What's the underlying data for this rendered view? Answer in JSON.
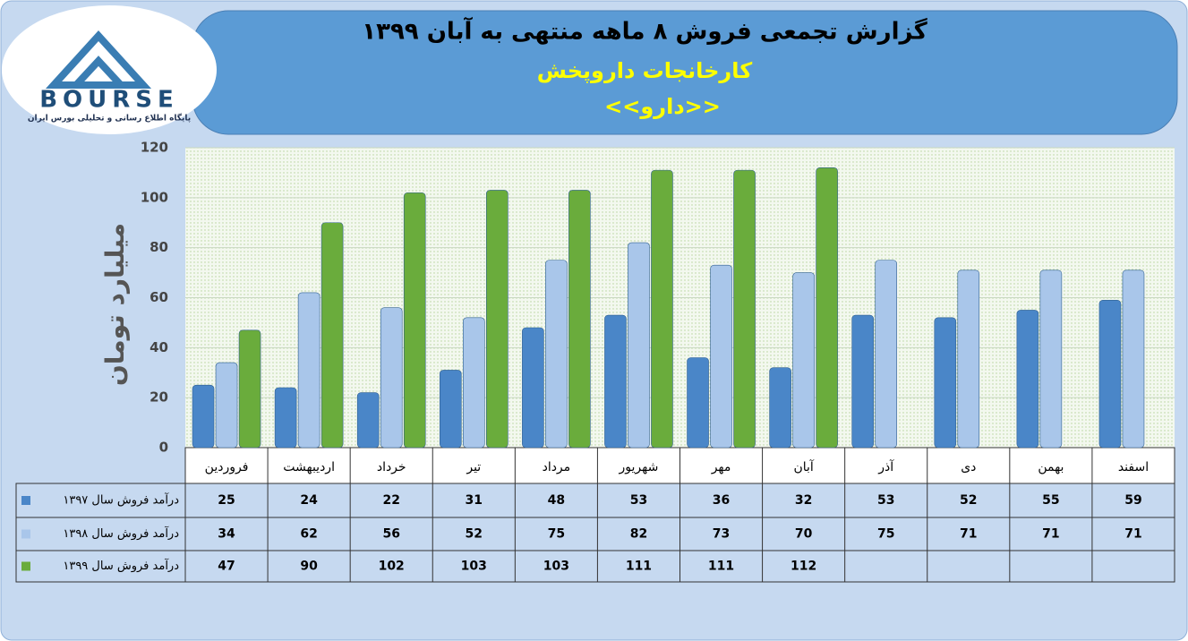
{
  "logo": {
    "brand": "BOURSE",
    "tagline": "پایگاه اطلاع رسانی و تحلیلی بورس ایران"
  },
  "chart_data": {
    "type": "bar",
    "title": "گزارش تجمعی فروش ۸ ماهه منتهی به آبان ۱۳۹۹",
    "subtitle": "کارخانجات داروپخش",
    "annotation": "<<دارو>>",
    "ylabel": "میلیارد تومان",
    "categories": [
      "فروردین",
      "اردیبهشت",
      "خرداد",
      "تیر",
      "مرداد",
      "شهریور",
      "مهر",
      "آبان",
      "آذر",
      "دی",
      "بهمن",
      "اسفند"
    ],
    "series": [
      {
        "name": "درآمد فروش سال ۱۳۹۷",
        "color": "#4a86c8",
        "values": [
          25,
          24,
          22,
          31,
          48,
          53,
          36,
          32,
          53,
          52,
          55,
          59
        ]
      },
      {
        "name": "درآمد فروش سال ۱۳۹۸",
        "color": "#a9c6ea",
        "values": [
          34,
          62,
          56,
          52,
          75,
          82,
          73,
          70,
          75,
          71,
          71,
          71
        ]
      },
      {
        "name": "درآمد فروش سال ۱۳۹۹",
        "color": "#6aac3c",
        "values": [
          47,
          90,
          102,
          103,
          103,
          111,
          111,
          112,
          null,
          null,
          null,
          null
        ]
      }
    ],
    "ylim": [
      0,
      120
    ],
    "yticks": [
      0,
      20,
      40,
      60,
      80,
      100,
      120
    ],
    "grid": true
  }
}
